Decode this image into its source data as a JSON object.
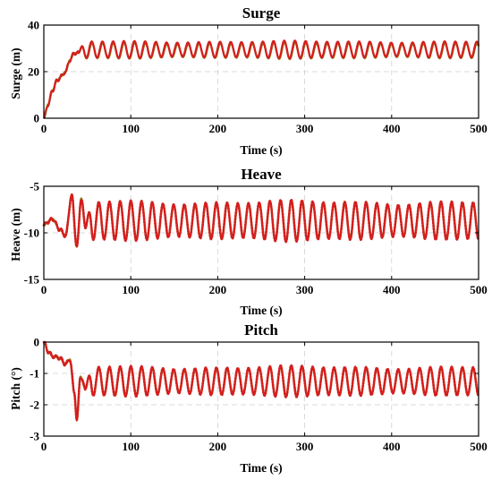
{
  "chart_data": [
    {
      "type": "line",
      "title": "Surge",
      "xlabel": "Time (s)",
      "ylabel": "Surge (m)",
      "xlim": [
        0,
        500
      ],
      "ylim": [
        0,
        40
      ],
      "xticks": [
        0,
        100,
        200,
        300,
        400,
        500
      ],
      "yticks": [
        0,
        20,
        40
      ],
      "grid": true,
      "series": [
        {
          "color": "#8b7a14",
          "style": "solid",
          "mean": 29.0,
          "amp": 3.2,
          "period": 12.3,
          "phase": 0.0
        },
        {
          "color": "#d51e1e",
          "style": "solid",
          "mean": 29.5,
          "amp": 3.4,
          "period": 12.3,
          "phase": 0.15
        }
      ],
      "transient": {
        "t": [
          0,
          5,
          10,
          15,
          20,
          25,
          30,
          35,
          40
        ],
        "y": [
          0,
          6,
          12,
          16,
          18,
          20,
          25,
          28,
          28
        ]
      },
      "steady_from": 40
    },
    {
      "type": "line",
      "title": "Heave",
      "xlabel": "Time (s)",
      "ylabel": "Heave (m)",
      "xlim": [
        0,
        500
      ],
      "ylim": [
        -15,
        -5
      ],
      "xticks": [
        0,
        100,
        200,
        300,
        400,
        500
      ],
      "yticks": [
        -15,
        -10,
        -5
      ],
      "grid": true,
      "series": [
        {
          "color": "#8b7a14",
          "style": "solid",
          "mean": -8.7,
          "amp": 1.9,
          "period": 12.3,
          "phase": 0.0
        },
        {
          "color": "#d51e1e",
          "style": "dotted",
          "mean": -8.7,
          "amp": 2.0,
          "period": 12.3,
          "phase": 0.1
        }
      ],
      "transient": {
        "t": [
          0,
          5,
          10,
          18,
          25,
          32,
          38,
          43,
          48
        ],
        "y": [
          -9.2,
          -8.8,
          -8.5,
          -9.6,
          -10.3,
          -6.0,
          -11.5,
          -6.3,
          -9.5
        ]
      },
      "steady_from": 48
    },
    {
      "type": "line",
      "title": "Pitch",
      "xlabel": "Time (s)",
      "ylabel": "Pitch (°)",
      "xlim": [
        0,
        500
      ],
      "ylim": [
        -3,
        0
      ],
      "xticks": [
        0,
        100,
        200,
        300,
        400,
        500
      ],
      "yticks": [
        -3,
        -2,
        -1,
        0
      ],
      "grid": true,
      "series": [
        {
          "color": "#8b7a14",
          "style": "solid",
          "mean": -1.25,
          "amp": 0.42,
          "period": 12.3,
          "phase": 0.0
        },
        {
          "color": "#d51e1e",
          "style": "dotted",
          "mean": -1.25,
          "amp": 0.45,
          "period": 12.3,
          "phase": 0.1
        }
      ],
      "transient": {
        "t": [
          0,
          5,
          10,
          18,
          25,
          30,
          35,
          38,
          42,
          48
        ],
        "y": [
          0,
          -0.3,
          -0.45,
          -0.5,
          -0.7,
          -0.55,
          -1.6,
          -2.5,
          -1.1,
          -1.5
        ]
      },
      "steady_from": 48
    }
  ]
}
